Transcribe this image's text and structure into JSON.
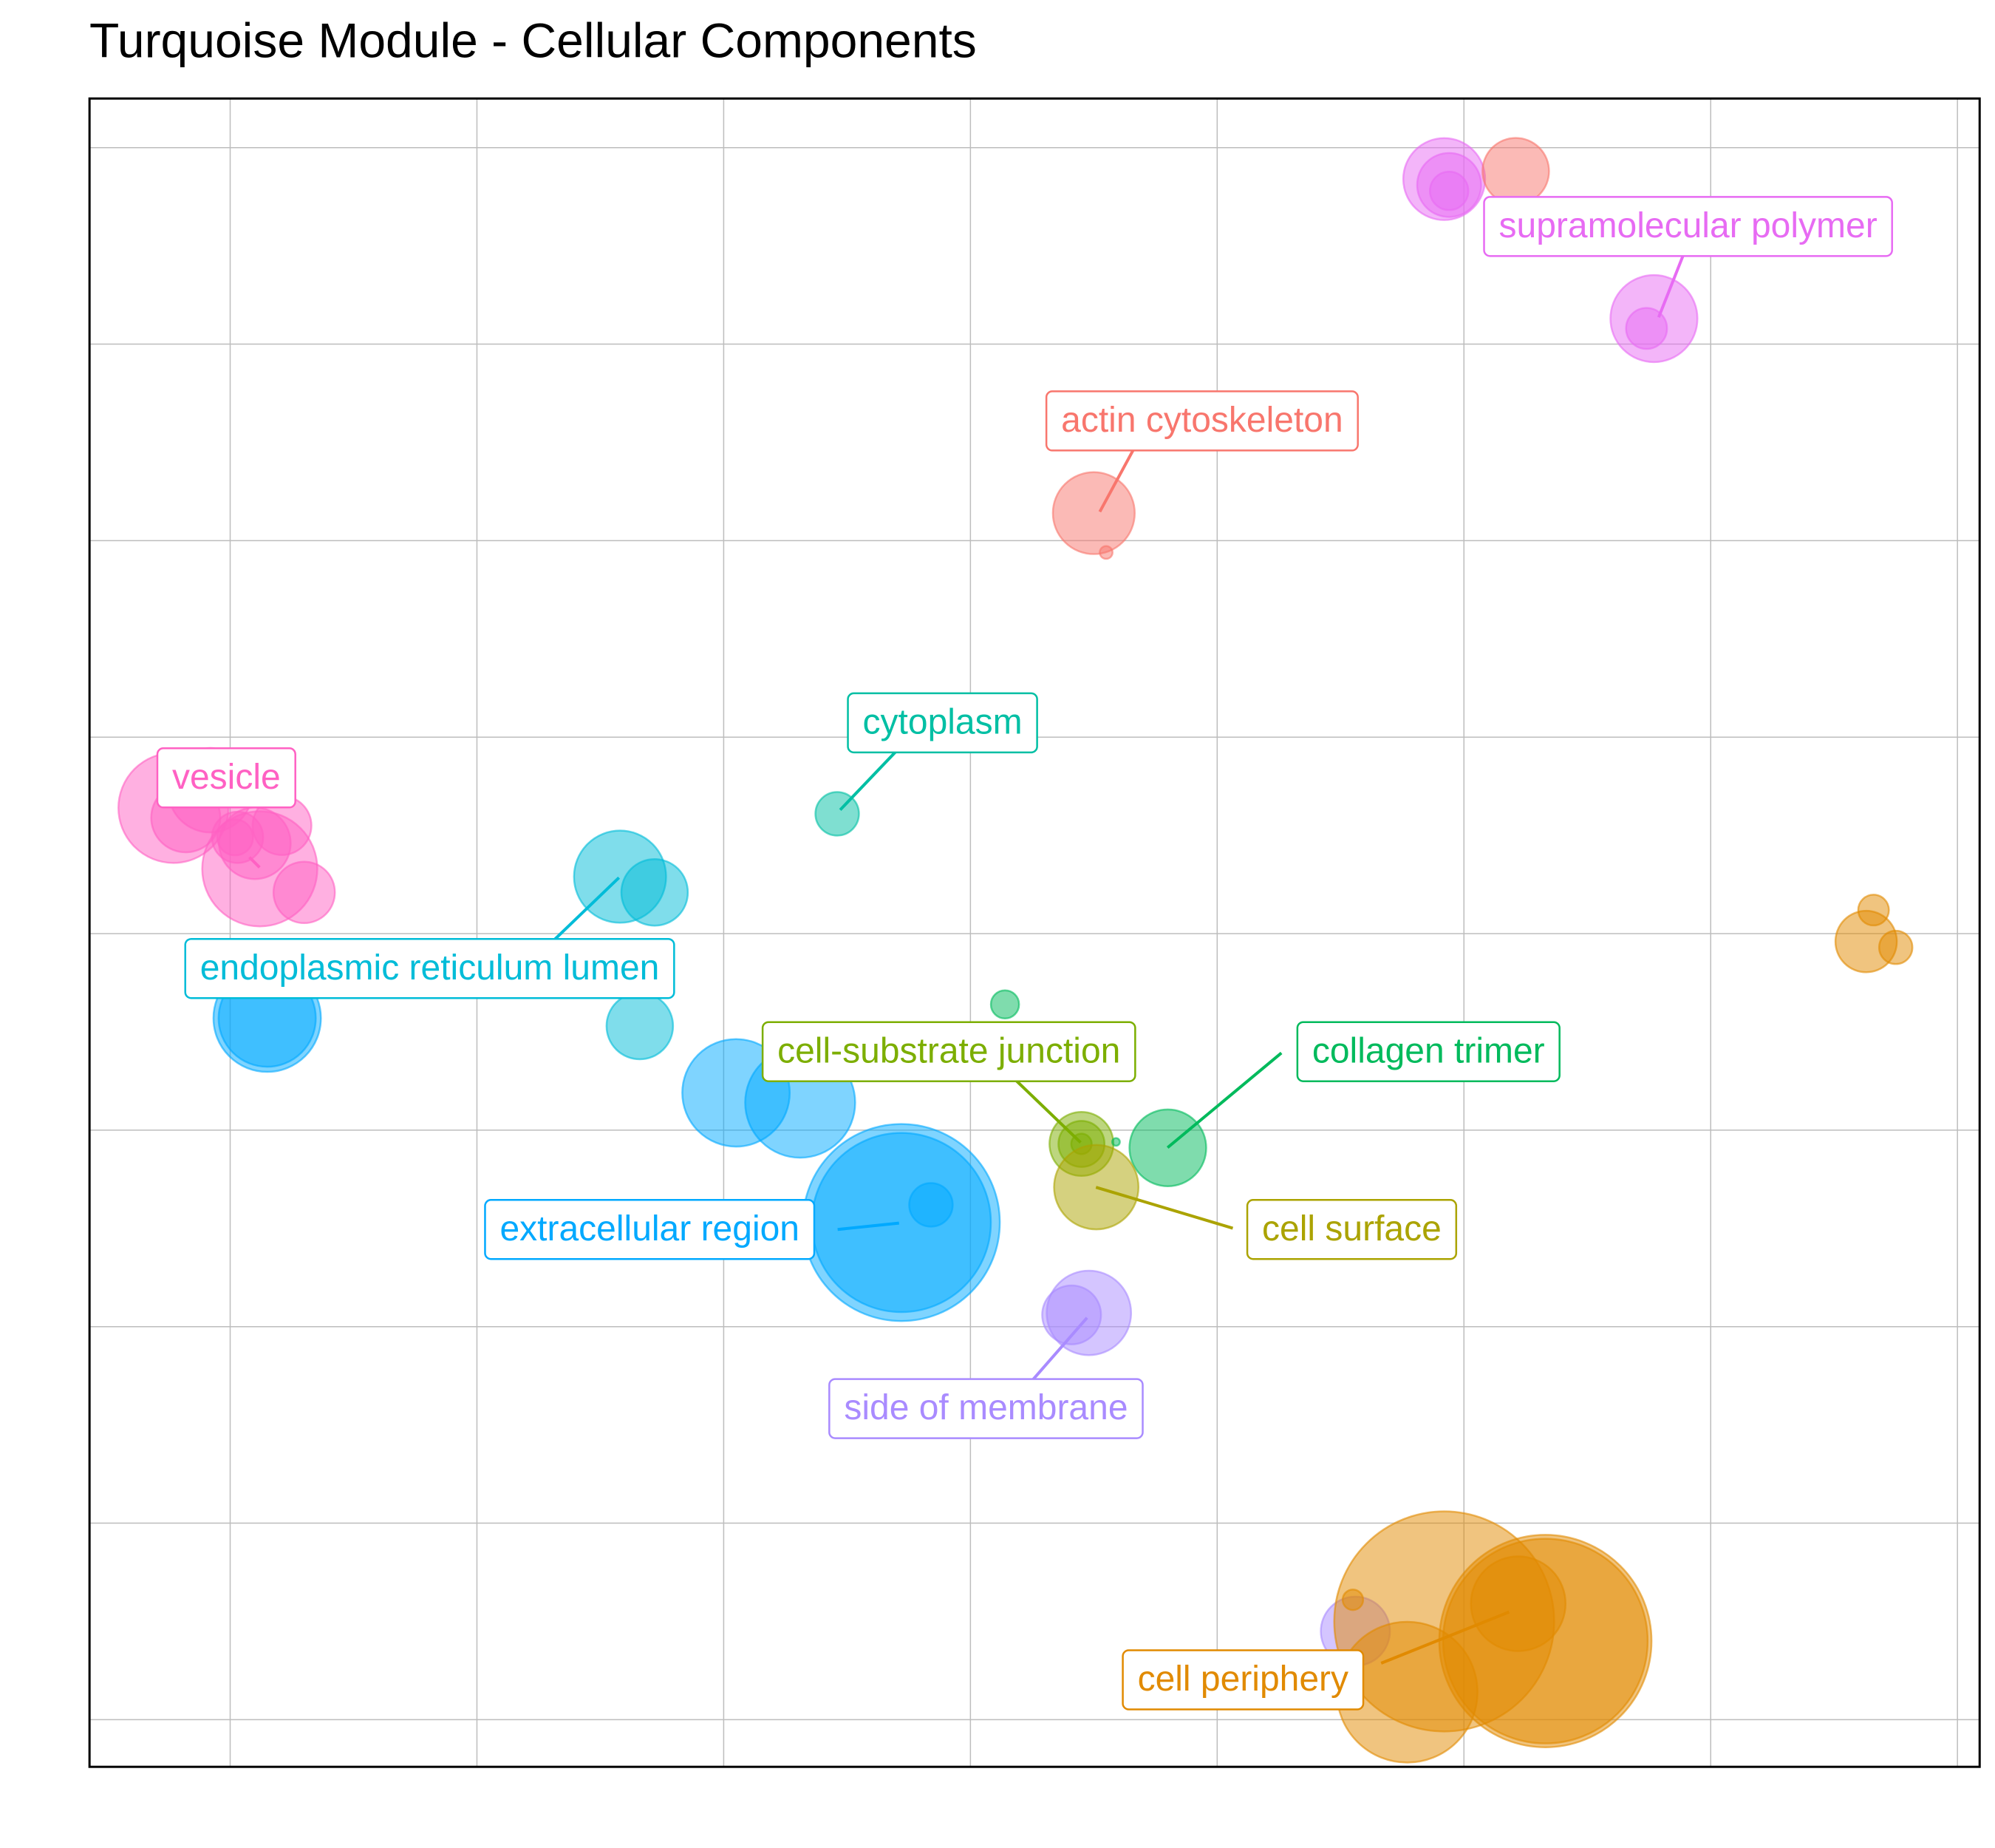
{
  "chart_data": {
    "type": "bubble",
    "title": "Turquoise Module - Cellular Components",
    "xlim": [
      -0.57,
      7.09
    ],
    "ylim": [
      -0.24,
      8.25
    ],
    "xticks": [
      0,
      1,
      2,
      3,
      4,
      5,
      6,
      7
    ],
    "yticks": [
      0,
      1,
      2,
      3,
      4,
      5,
      6,
      7,
      8
    ],
    "grid": true,
    "series": [
      {
        "name": "supramolecular polymer",
        "color": "#E76BF3",
        "x": [
          4.92,
          4.94,
          4.94,
          5.77,
          5.74
        ],
        "values": [
          7.84,
          7.81,
          7.78,
          7.13,
          7.08
        ],
        "sizes": [
          32,
          25,
          15,
          34,
          16
        ]
      },
      {
        "name": "actin cytoskeleton",
        "color": "#F8766D",
        "x": [
          3.5,
          3.55,
          5.21
        ],
        "values": [
          6.14,
          5.94,
          7.88
        ],
        "sizes": [
          32,
          5,
          26
        ]
      },
      {
        "name": "cytoplasm",
        "color": "#00BFA4",
        "x": [
          2.46
        ],
        "values": [
          4.61
        ],
        "sizes": [
          17
        ]
      },
      {
        "name": "vesicle",
        "color": "#FF61C3",
        "x": [
          -0.23,
          -0.18,
          -0.08,
          0.1,
          0.03,
          0.21,
          0.12,
          0.3,
          0.02
        ],
        "values": [
          4.64,
          4.59,
          4.73,
          4.46,
          4.49,
          4.55,
          4.33,
          4.21,
          4.49
        ],
        "sizes": [
          43,
          27,
          33,
          28,
          20,
          23,
          45,
          24,
          14
        ]
      },
      {
        "name": "endoplasmic reticulum lumen",
        "color": "#00BCD8",
        "x": [
          1.58,
          1.72,
          1.66
        ],
        "values": [
          4.29,
          4.21,
          3.53
        ],
        "sizes": [
          36,
          26,
          26
        ]
      },
      {
        "name": "cell-substrate junction",
        "color": "#7CAE00",
        "x": [
          3.45,
          3.45,
          3.45
        ],
        "values": [
          2.93,
          2.93,
          2.93
        ],
        "sizes": [
          25,
          18,
          8
        ]
      },
      {
        "name": "collagen trimer",
        "color": "#00BA5C",
        "x": [
          3.14,
          3.8,
          3.59
        ],
        "values": [
          3.64,
          2.91,
          2.94
        ],
        "sizes": [
          11,
          30,
          3
        ]
      },
      {
        "name": "extracellular region",
        "color": "#00A9FF",
        "x": [
          0.15,
          0.15,
          2.05,
          2.31,
          2.72,
          2.72,
          2.84
        ],
        "values": [
          3.57,
          3.57,
          3.19,
          3.14,
          2.53,
          2.53,
          2.62
        ],
        "sizes": [
          42,
          38,
          42,
          43,
          77,
          70,
          17
        ]
      },
      {
        "name": "cell surface",
        "color": "#ABA300",
        "x": [
          3.51
        ],
        "values": [
          2.71
        ],
        "sizes": [
          33
        ]
      },
      {
        "name": "side of membrane",
        "color": "#A98BFF",
        "x": [
          3.48,
          3.41,
          4.56
        ],
        "values": [
          2.07,
          2.06,
          0.45
        ],
        "sizes": [
          33,
          23,
          27
        ]
      },
      {
        "name": "cell periphery",
        "color": "#E18A00",
        "x": [
          4.92,
          5.33,
          5.33,
          5.22,
          4.77,
          4.55,
          6.63,
          6.66,
          6.75
        ],
        "values": [
          0.5,
          0.4,
          0.4,
          0.59,
          0.14,
          0.61,
          3.96,
          4.12,
          3.93
        ],
        "sizes": [
          86,
          83,
          80,
          37,
          55,
          8,
          24,
          12,
          13
        ]
      }
    ]
  }
}
